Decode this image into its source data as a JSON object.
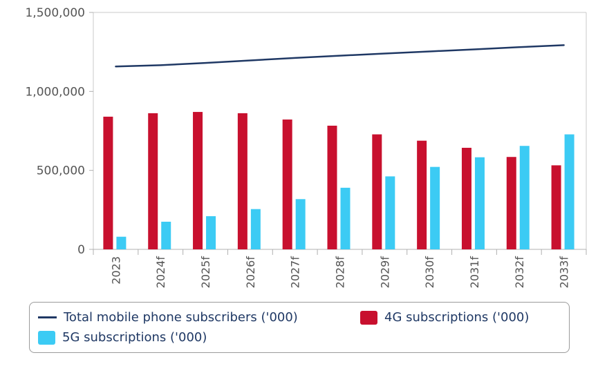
{
  "chart_data": {
    "type": "bar",
    "title": "",
    "xlabel": "",
    "ylabel": "",
    "categories": [
      "2023",
      "2024f",
      "2025f",
      "2026f",
      "2027f",
      "2028f",
      "2029f",
      "2030f",
      "2031f",
      "2032f",
      "2033f"
    ],
    "ylim": [
      0,
      1500000
    ],
    "yticks": [
      0,
      500000,
      1000000,
      1500000
    ],
    "ytick_labels": [
      "0",
      "500,000",
      "1,000,000",
      "1,500,000"
    ],
    "grid": false,
    "legend_position": "bottom",
    "series": [
      {
        "name": "Total mobile phone subscribers ('000)",
        "type": "line",
        "color": "#1f3864",
        "values": [
          1158000,
          1166000,
          1180000,
          1196000,
          1212000,
          1226000,
          1240000,
          1253000,
          1266000,
          1280000,
          1293000
        ]
      },
      {
        "name": "4G subscriptions ('000)",
        "type": "bar",
        "color": "#c8102e",
        "values": [
          840000,
          862000,
          870000,
          862000,
          822000,
          783000,
          728000,
          688000,
          643000,
          585000,
          532000
        ]
      },
      {
        "name": "5G subscriptions ('000)",
        "type": "bar",
        "color": "#3ccbf4",
        "values": [
          80000,
          175000,
          210000,
          255000,
          318000,
          390000,
          462000,
          522000,
          583000,
          655000,
          728000
        ]
      }
    ]
  }
}
